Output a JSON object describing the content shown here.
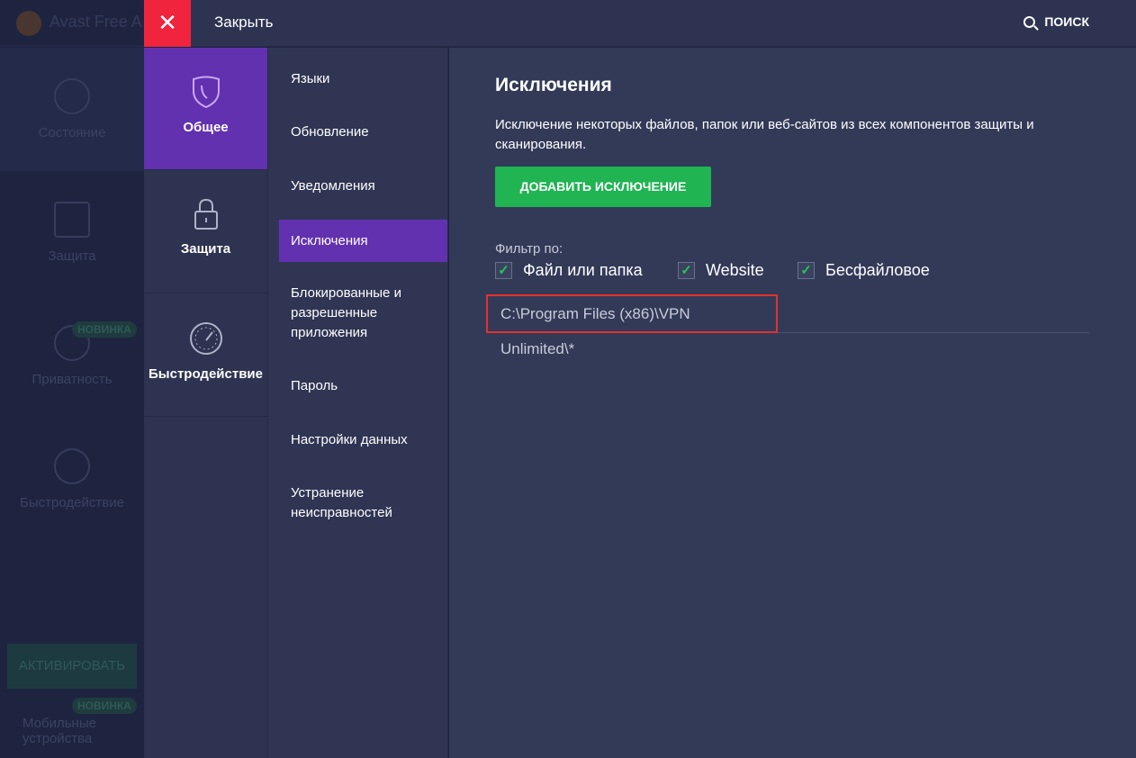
{
  "background_app": {
    "title": "Avast Free A",
    "nav": [
      "Состояние",
      "Защита",
      "Приватность",
      "Быстродействие"
    ],
    "new_badge": "НОВИНКА",
    "activate": "АКТИВИРОВАТЬ",
    "mobile": [
      "Мобильные",
      "устройства"
    ]
  },
  "topbar": {
    "close_label": "Закрыть",
    "search_label": "ПОИСК"
  },
  "categories": [
    {
      "label": "Общее",
      "icon": "shield-icon",
      "active": true
    },
    {
      "label": "Защита",
      "icon": "lock-icon"
    },
    {
      "label": "Быстродействие",
      "icon": "speedometer-icon"
    }
  ],
  "submenu": [
    {
      "label": "Языки"
    },
    {
      "label": "Обновление"
    },
    {
      "label": "Уведомления"
    },
    {
      "label": "Исключения",
      "active": true
    },
    {
      "label": "Блокированные и разрешенные приложения"
    },
    {
      "label": "Пароль"
    },
    {
      "label": "Настройки данных"
    },
    {
      "label": "Устранение неисправностей"
    }
  ],
  "content": {
    "title": "Исключения",
    "description": "Исключение некоторых файлов, папок или веб-сайтов из всех компонентов защиты и сканирования.",
    "add_button": "ДОБАВИТЬ ИСКЛЮЧЕНИЕ",
    "filter_label": "Фильтр по:",
    "filters": [
      {
        "label": "Файл или папка",
        "checked": true
      },
      {
        "label": "Website",
        "checked": true
      },
      {
        "label": "Бесфайловое",
        "checked": true
      }
    ],
    "exclusions": [
      "C:\\Program Files (x86)\\VPN Unlimited\\*"
    ]
  },
  "colors": {
    "accent": "#6231b0",
    "close": "#f0243c",
    "add": "#20b453",
    "highlight": "#e0322c"
  }
}
